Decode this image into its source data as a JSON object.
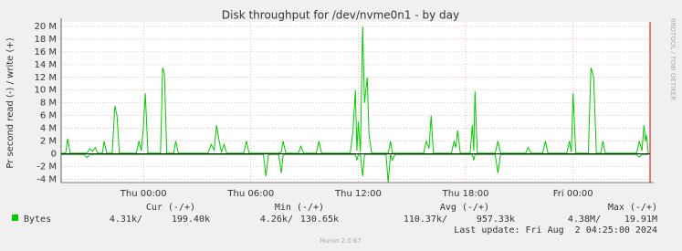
{
  "chart_data": {
    "type": "line",
    "title": "Disk throughput for /dev/nvme0n1 - by day",
    "y_label": "Pr second read (-) / write (+)",
    "side_label": "RRDTOOL / TOBI OETIKER",
    "x": [
      -4.6,
      -4.35,
      -4.23,
      -4.1,
      -3.3,
      -3.16,
      -3.0,
      -2.85,
      -2.7,
      -2.55,
      -2.3,
      -2.2,
      -2.05,
      -1.75,
      -1.6,
      -1.48,
      -1.35,
      -0.4,
      -0.25,
      -0.12,
      0.0,
      0.1,
      0.25,
      0.95,
      1.07,
      1.17,
      1.3,
      1.68,
      1.8,
      1.95,
      3.6,
      3.78,
      3.95,
      4.08,
      4.23,
      4.35,
      4.5,
      4.65,
      5.6,
      5.75,
      5.9,
      6.7,
      6.84,
      6.98,
      7.55,
      7.7,
      7.8,
      7.95,
      8.65,
      8.8,
      8.95,
      9.65,
      9.8,
      9.95,
      11.55,
      11.7,
      11.84,
      11.92,
      12.0,
      12.12,
      12.24,
      12.35,
      12.5,
      12.6,
      12.75,
      13.55,
      13.67,
      13.8,
      13.9,
      14.05,
      15.65,
      15.8,
      15.95,
      16.07,
      16.2,
      17.2,
      17.35,
      17.45,
      17.55,
      17.7,
      18.25,
      18.37,
      18.45,
      18.52,
      18.65,
      19.65,
      19.8,
      19.95,
      21.35,
      21.5,
      21.65,
      22.3,
      22.45,
      22.6,
      23.65,
      23.8,
      23.9,
      24.0,
      24.15,
      24.85,
      25.0,
      25.15,
      25.3,
      25.55,
      25.66,
      25.8,
      27.55,
      27.7,
      27.85,
      27.96,
      28.05,
      28.1,
      28.2
    ],
    "series": [
      {
        "name": "Bytes",
        "color": "#00cc00",
        "values": [
          0.1,
          0.1,
          2.4,
          0.1,
          0.1,
          0.1,
          0.8,
          0.4,
          1.0,
          0.1,
          0.1,
          2.0,
          0.1,
          0.1,
          7.5,
          6.0,
          0.1,
          0.1,
          2.0,
          0.5,
          4.5,
          9.5,
          0.1,
          0.1,
          13.5,
          12.5,
          0.1,
          0.1,
          2.0,
          0.1,
          0.1,
          1.5,
          0.6,
          4.5,
          2.0,
          0.3,
          1.5,
          0.1,
          0.1,
          2.0,
          0.1,
          0.1,
          0.1,
          0.1,
          0.1,
          0.3,
          2.0,
          0.1,
          0.1,
          1.2,
          0.1,
          0.1,
          2.0,
          0.1,
          0.1,
          3.5,
          10.0,
          0.5,
          5.0,
          0.3,
          20.0,
          8.0,
          12.0,
          3.0,
          0.1,
          0.1,
          0.1,
          2.0,
          0.1,
          0.1,
          0.1,
          2.0,
          0.8,
          6.0,
          0.1,
          0.1,
          2.0,
          1.0,
          3.7,
          0.1,
          0.1,
          4.5,
          0.5,
          9.8,
          0.1,
          0.1,
          2.0,
          0.1,
          0.1,
          1.0,
          0.1,
          0.1,
          2.0,
          0.1,
          0.1,
          2.0,
          0.3,
          9.5,
          0.1,
          0.1,
          13.5,
          12.0,
          0.1,
          0.1,
          2.0,
          0.1,
          0.1,
          2.0,
          0.5,
          4.5,
          2.0,
          3.0,
          0.1
        ]
      },
      {
        "color": "#00cc00",
        "values": [
          -0.1,
          -0.1,
          -0.1,
          -0.1,
          -0.1,
          -0.6,
          -0.1,
          -0.1,
          -0.1,
          -0.1,
          -0.1,
          -0.1,
          -0.1,
          -0.1,
          -0.1,
          -0.1,
          -0.1,
          -0.1,
          -0.1,
          -0.1,
          -0.1,
          -0.1,
          -0.1,
          -0.1,
          -0.1,
          -0.1,
          -0.1,
          -0.1,
          -0.1,
          -0.1,
          -0.1,
          -0.1,
          -0.1,
          -0.1,
          -0.1,
          -0.1,
          -0.1,
          -0.1,
          -0.1,
          -0.1,
          -0.1,
          -0.1,
          -3.5,
          -0.1,
          -0.1,
          -3.0,
          -0.1,
          -0.1,
          -0.1,
          -0.1,
          -0.1,
          -0.1,
          -0.1,
          -0.1,
          -0.1,
          -0.1,
          -0.1,
          -1.0,
          -0.1,
          -0.1,
          -3.5,
          -0.1,
          -0.1,
          -0.1,
          -0.1,
          -0.1,
          -4.5,
          -0.1,
          -1.0,
          -0.1,
          -0.1,
          -0.1,
          -0.1,
          -0.1,
          -0.1,
          -0.1,
          -0.1,
          -0.1,
          -0.1,
          -0.1,
          -0.1,
          -0.1,
          -1.0,
          -0.1,
          -0.1,
          -0.1,
          -3.0,
          -0.1,
          -0.1,
          -0.1,
          -0.1,
          -0.1,
          -0.1,
          -0.1,
          -0.1,
          -0.1,
          -0.1,
          -0.1,
          -0.1,
          -0.1,
          -0.1,
          -0.1,
          -0.1,
          -0.1,
          -0.1,
          -0.1,
          -0.1,
          -0.5,
          -0.1,
          -0.1,
          -0.1,
          -0.1,
          -0.1
        ]
      }
    ],
    "xlim": [
      -4.6,
      28.3
    ],
    "xticks": [
      {
        "value": 0,
        "label": "Thu 00:00"
      },
      {
        "value": 6,
        "label": "Thu 06:00"
      },
      {
        "value": 12,
        "label": "Thu 12:00"
      },
      {
        "value": 18,
        "label": "Thu 18:00"
      },
      {
        "value": 24,
        "label": "Fri 00:00"
      }
    ],
    "ylim": [
      -4.5,
      20.7
    ],
    "yticks": [
      {
        "value": -4,
        "label": "-4 M"
      },
      {
        "value": -2,
        "label": "-2 M"
      },
      0,
      {
        "value": 2,
        "label": "2 M"
      },
      {
        "value": 4,
        "label": "4 M"
      },
      {
        "value": 6,
        "label": "6 M"
      },
      {
        "value": 8,
        "label": "8 M"
      },
      {
        "value": 10,
        "label": "10 M"
      },
      {
        "value": 12,
        "label": "12 M"
      },
      {
        "value": 14,
        "label": "14 M"
      },
      {
        "value": 16,
        "label": "16 M"
      },
      {
        "value": 18,
        "label": "18 M"
      },
      {
        "value": 20,
        "label": "20 M"
      }
    ],
    "grid": true,
    "legend_table": {
      "headers": [
        "Cur (-/+)",
        "Min (-/+)",
        "Avg (-/+)",
        "Max (-/+)"
      ],
      "row": [
        "4.31k/",
        "199.40k",
        "4.26k/",
        "130.65k",
        "110.37k/",
        "957.33k",
        "4.38M/",
        "19.91M"
      ],
      "last_update": "Last update: Fri Aug  2 04:25:00 2024"
    },
    "footer": "Munin 2.0.67"
  }
}
